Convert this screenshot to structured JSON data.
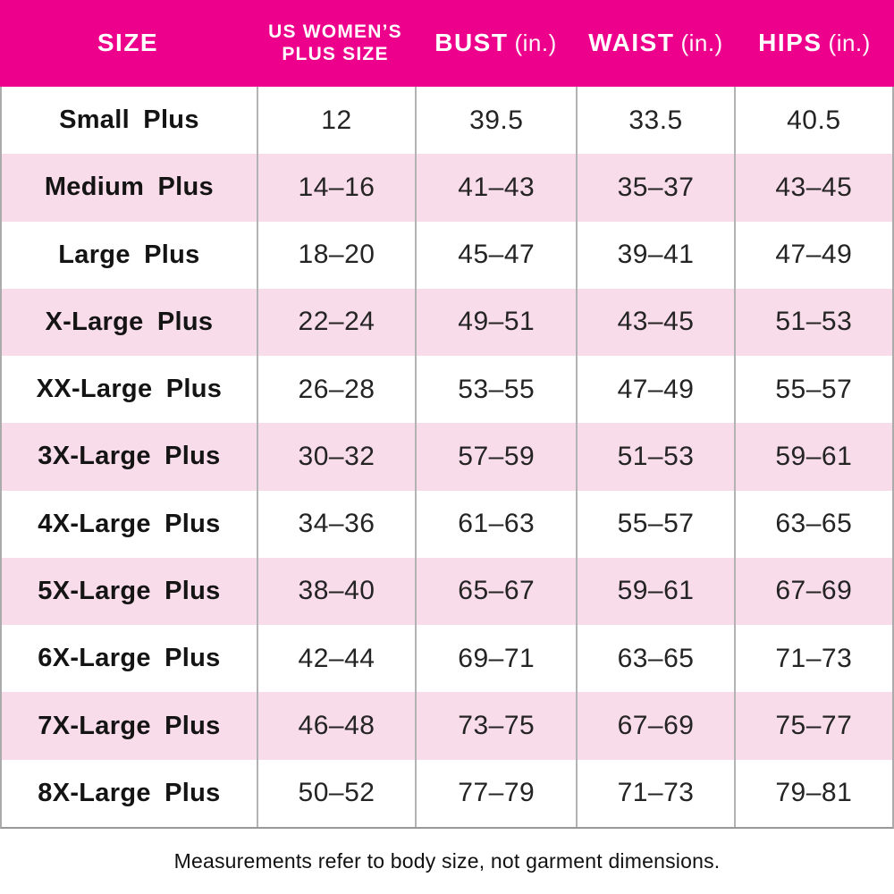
{
  "header": {
    "col_size": "SIZE",
    "col_us_line1": "US WOMEN’S",
    "col_us_line2": "PLUS SIZE",
    "col_bust": "BUST",
    "col_waist": "WAIST",
    "col_hips": "HIPS",
    "unit": "(in.)"
  },
  "footer": {
    "note": "Measurements refer to body size, not garment dimensions."
  },
  "colors": {
    "header_bg": "#EC008C",
    "header_text": "#FFFFFF",
    "stripe_pink": "#F9DCE9",
    "row_white": "#FFFFFF",
    "body_text": "#1D1D1D",
    "divider_gray": "#B3B3B3",
    "border_gray": "#989898"
  },
  "chart_data": {
    "type": "table",
    "title": "",
    "columns": [
      "SIZE",
      "US WOMEN’S PLUS SIZE",
      "BUST (in.)",
      "WAIST (in.)",
      "HIPS (in.)"
    ],
    "rows": [
      [
        "Small Plus",
        "12",
        "39.5",
        "33.5",
        "40.5"
      ],
      [
        "Medium Plus",
        "14–16",
        "41–43",
        "35–37",
        "43–45"
      ],
      [
        "Large Plus",
        "18–20",
        "45–47",
        "39–41",
        "47–49"
      ],
      [
        "X-Large Plus",
        "22–24",
        "49–51",
        "43–45",
        "51–53"
      ],
      [
        "XX-Large Plus",
        "26–28",
        "53–55",
        "47–49",
        "55–57"
      ],
      [
        "3X-Large Plus",
        "30–32",
        "57–59",
        "51–53",
        "59–61"
      ],
      [
        "4X-Large Plus",
        "34–36",
        "61–63",
        "55–57",
        "63–65"
      ],
      [
        "5X-Large Plus",
        "38–40",
        "65–67",
        "59–61",
        "67–69"
      ],
      [
        "6X-Large Plus",
        "42–44",
        "69–71",
        "63–65",
        "71–73"
      ],
      [
        "7X-Large Plus",
        "46–48",
        "73–75",
        "67–69",
        "75–77"
      ],
      [
        "8X-Large Plus",
        "50–52",
        "77–79",
        "71–73",
        "79–81"
      ]
    ],
    "note": "Measurements refer to body size, not garment dimensions.",
    "layout": {
      "striped_rows": true,
      "stripe_starts_on_row": 2,
      "header_position": "top"
    }
  }
}
